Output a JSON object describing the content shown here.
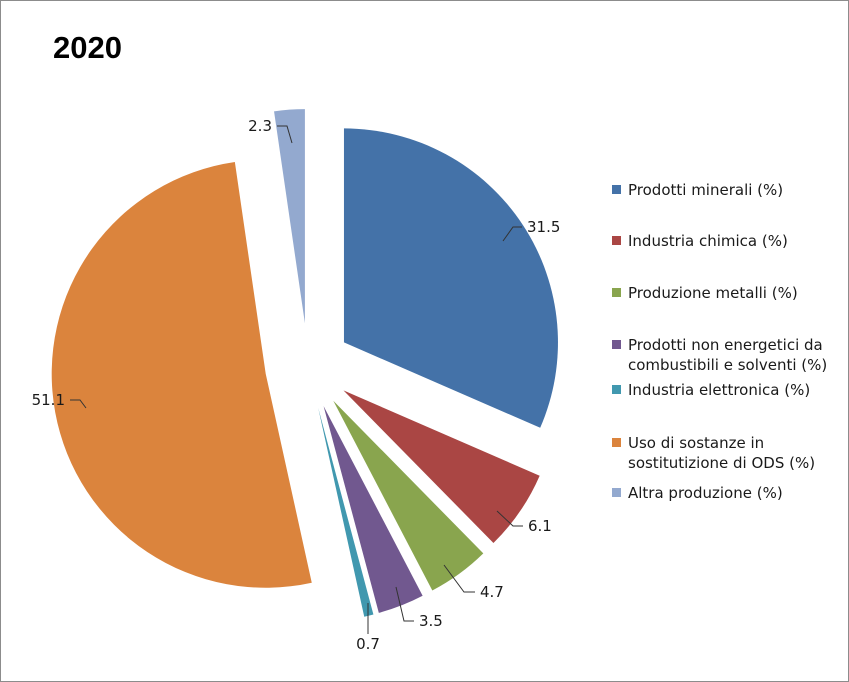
{
  "title": "2020",
  "chart_data": {
    "type": "pie",
    "title": "2020",
    "exploded": true,
    "legend_position": "right",
    "slices": [
      {
        "label": "Prodotti minerali (%)",
        "value": 31.5,
        "value_label": "31.5",
        "color": "#4472a8"
      },
      {
        "label": "Industria chimica (%)",
        "value": 6.1,
        "value_label": "6.1",
        "color": "#aa4644"
      },
      {
        "label": "Produzione metalli (%)",
        "value": 4.7,
        "value_label": "4.7",
        "color": "#89a54e"
      },
      {
        "label": "Prodotti non energetici da combustibili e solventi (%)",
        "value": 3.5,
        "value_label": "3.5",
        "color": "#71588f"
      },
      {
        "label": "Industria elettronica (%)",
        "value": 0.7,
        "value_label": "0.7",
        "color": "#4198af"
      },
      {
        "label": "Uso di sostanze in sostitutizione di ODS (%)",
        "value": 51.1,
        "value_label": "51.1",
        "color": "#db843d"
      },
      {
        "label": "Altra produzione (%)",
        "value": 2.3,
        "value_label": "2.3",
        "color": "#93a9cf"
      }
    ]
  }
}
